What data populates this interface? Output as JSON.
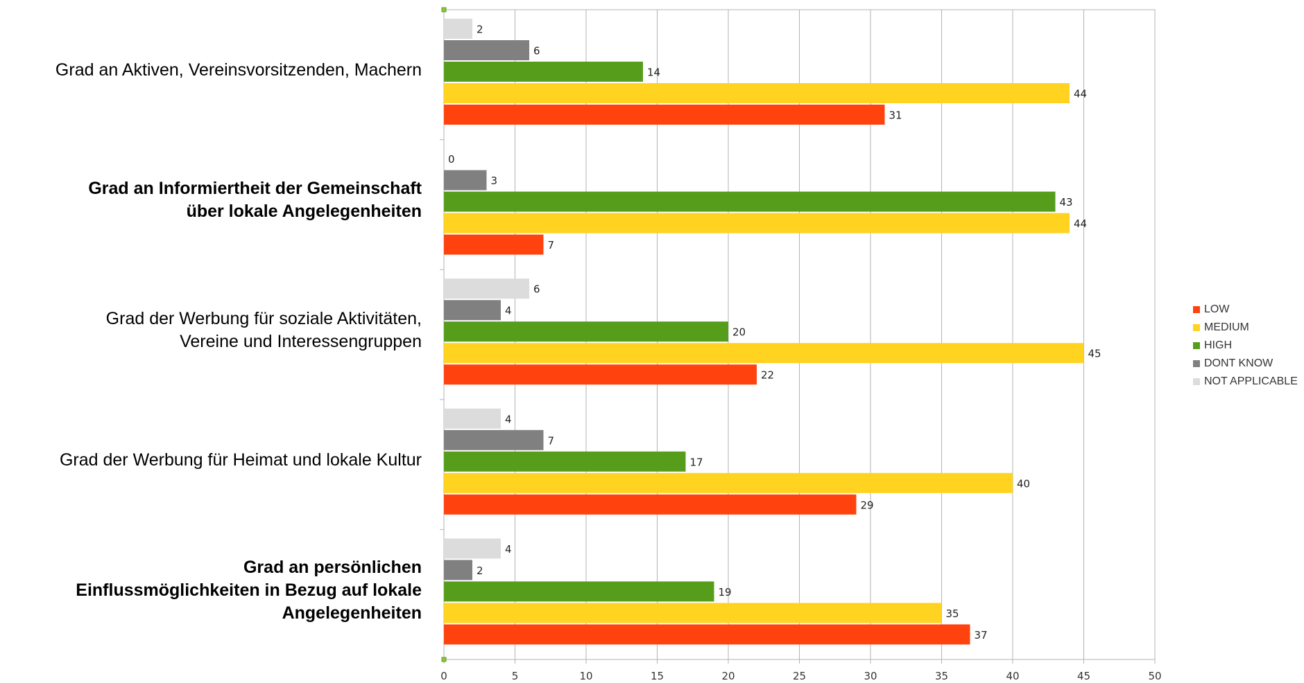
{
  "chart_data": {
    "type": "bar",
    "orientation": "horizontal",
    "categories": [
      "Grad an Aktiven, Vereinsvorsitzenden, Machern",
      "Grad an Informiertheit der Gemeinschaft über lokale Angelegenheiten",
      "Grad der Werbung für soziale Aktivitäten, Vereine und Interessengruppen",
      "Grad der Werbung für Heimat und lokale Kultur",
      "Grad an persönlichen Einflussmöglichkeiten in Bezug auf lokale Angelegenheiten"
    ],
    "category_lines": [
      [
        "Grad an Aktiven, Vereinsvorsitzenden, Machern"
      ],
      [
        "Grad an Informiertheit der Gemeinschaft",
        "über lokale Angelegenheiten"
      ],
      [
        "Grad der Werbung für soziale Aktivitäten,",
        "Vereine und Interessengruppen"
      ],
      [
        "Grad der Werbung für Heimat und lokale Kultur"
      ],
      [
        "Grad an persönlichen",
        "Einflussmöglichkeiten in Bezug auf lokale",
        "Angelegenheiten"
      ]
    ],
    "category_bold": [
      false,
      true,
      false,
      false,
      true
    ],
    "series": [
      {
        "name": "NOT APPLICABLE",
        "color": "#dcdcdc",
        "values": [
          2,
          0,
          6,
          4,
          4
        ]
      },
      {
        "name": "DONT KNOW",
        "color": "#808080",
        "values": [
          6,
          3,
          4,
          7,
          2
        ]
      },
      {
        "name": "HIGH",
        "color": "#579d1c",
        "values": [
          14,
          43,
          20,
          17,
          19
        ]
      },
      {
        "name": "MEDIUM",
        "color": "#ffd320",
        "values": [
          44,
          44,
          45,
          40,
          35
        ]
      },
      {
        "name": "LOW",
        "color": "#ff420e",
        "values": [
          31,
          7,
          22,
          29,
          37
        ]
      }
    ],
    "legend_order": [
      "LOW",
      "MEDIUM",
      "HIGH",
      "DONT KNOW",
      "NOT APPLICABLE"
    ],
    "xlim": [
      0,
      50
    ],
    "x_ticks": [
      0,
      5,
      10,
      15,
      20,
      25,
      30,
      35,
      40,
      45,
      50
    ],
    "grid": true,
    "legend_position": "right",
    "data_labels": true
  }
}
